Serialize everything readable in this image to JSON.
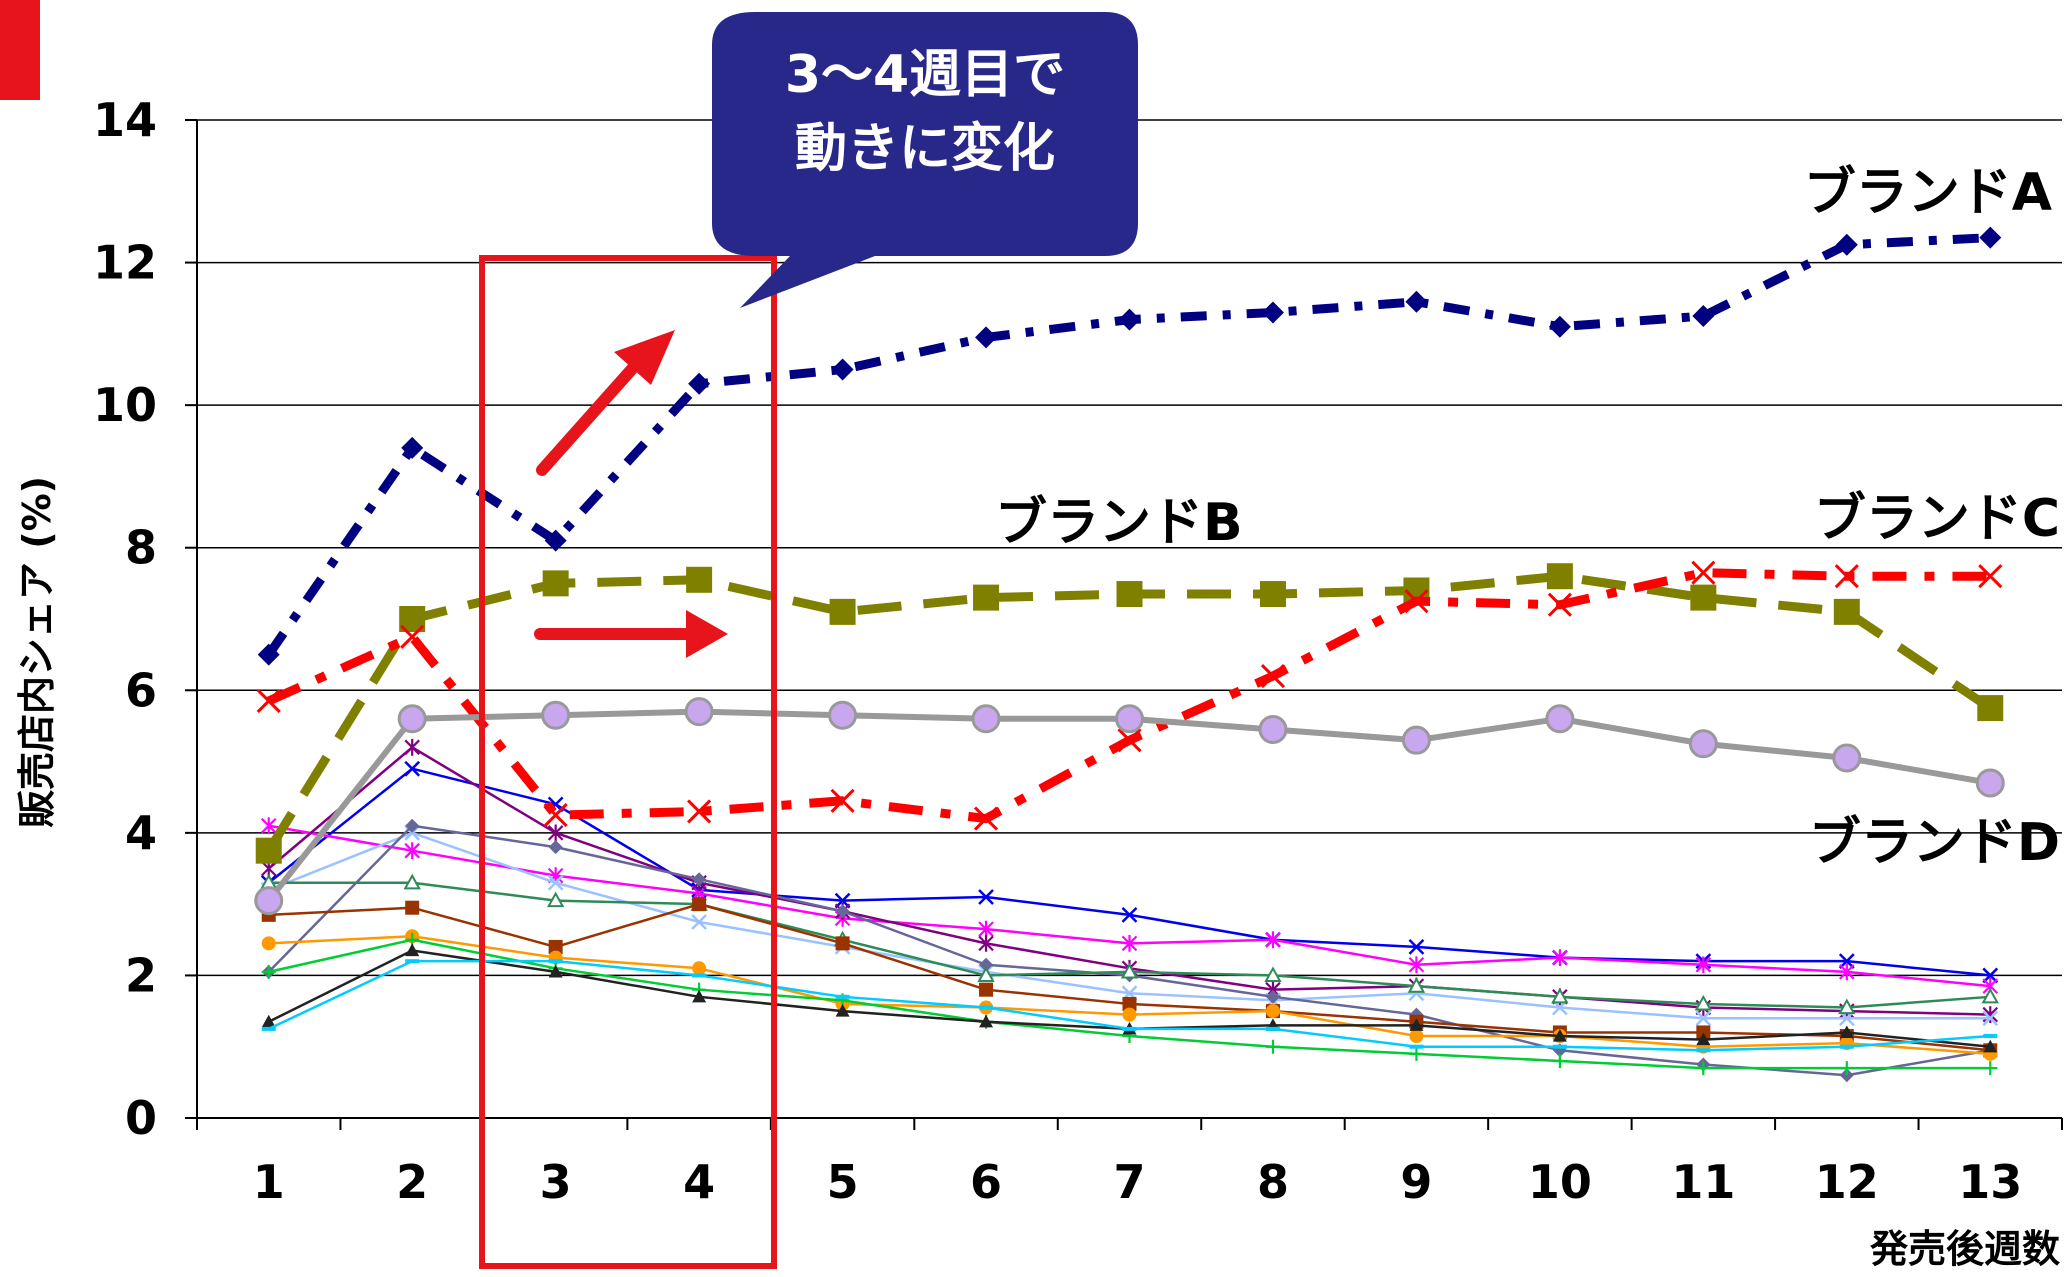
{
  "colors": {
    "brand_a": "#000080",
    "brand_b": "#808000",
    "brand_c": "#ff0000",
    "brand_d": "#999999",
    "callout_bg": "#28288a",
    "highlight": "#e8141b"
  },
  "callout": {
    "line1": "3～4週目で",
    "line2": "動きに変化"
  },
  "chart_data": {
    "type": "line",
    "xlabel": "発売後週数",
    "ylabel": "販売店内シェア (%)",
    "ylim": [
      0,
      14
    ],
    "yticks": [
      "0",
      "2",
      "4",
      "6",
      "8",
      "10",
      "12",
      "14"
    ],
    "categories": [
      "1",
      "2",
      "3",
      "4",
      "5",
      "6",
      "7",
      "8",
      "9",
      "10",
      "11",
      "12",
      "13"
    ],
    "grid": true,
    "series": [
      {
        "name": "ブランドA",
        "color": "#000080",
        "style": "dashed-thick",
        "marker": "diamond",
        "values": [
          6.5,
          9.4,
          8.1,
          10.3,
          10.5,
          10.95,
          11.2,
          11.3,
          11.45,
          11.1,
          11.25,
          12.25,
          12.35
        ]
      },
      {
        "name": "ブランドB",
        "color": "#808000",
        "style": "dashed-thick",
        "marker": "square",
        "values": [
          3.75,
          7.0,
          7.5,
          7.55,
          7.1,
          7.3,
          7.35,
          7.35,
          7.4,
          7.6,
          7.3,
          7.1,
          5.75
        ]
      },
      {
        "name": "ブランドC",
        "color": "#ff0000",
        "style": "dashed-thick",
        "marker": "x",
        "values": [
          5.85,
          6.75,
          4.25,
          4.3,
          4.45,
          4.2,
          5.3,
          6.2,
          7.25,
          7.2,
          7.65,
          7.6,
          7.6
        ]
      },
      {
        "name": "ブランドD",
        "color": "#999999",
        "style": "solid-thick",
        "marker": "circle",
        "values": [
          3.05,
          5.6,
          5.65,
          5.7,
          5.65,
          5.6,
          5.6,
          5.45,
          5.3,
          5.6,
          5.25,
          5.05,
          4.7
        ]
      },
      {
        "color": "#0000ee",
        "marker": "x",
        "values": [
          3.3,
          4.9,
          4.4,
          3.2,
          3.05,
          3.1,
          2.85,
          2.5,
          2.4,
          2.25,
          2.2,
          2.2,
          2.0
        ]
      },
      {
        "color": "#ff00ff",
        "marker": "star",
        "values": [
          4.1,
          3.75,
          3.4,
          3.15,
          2.8,
          2.65,
          2.45,
          2.5,
          2.15,
          2.25,
          2.15,
          2.05,
          1.85
        ]
      },
      {
        "color": "#800080",
        "marker": "star",
        "values": [
          3.5,
          5.2,
          4.0,
          3.3,
          2.9,
          2.45,
          2.1,
          1.8,
          1.85,
          1.7,
          1.55,
          1.5,
          1.45
        ]
      },
      {
        "color": "#9bc2ff",
        "marker": "x",
        "values": [
          3.2,
          4.0,
          3.3,
          2.75,
          2.4,
          2.05,
          1.75,
          1.65,
          1.75,
          1.55,
          1.4,
          1.4,
          1.4
        ]
      },
      {
        "color": "#666699",
        "marker": "diamond",
        "values": [
          2.05,
          4.1,
          3.8,
          3.35,
          2.9,
          2.15,
          2.0,
          1.7,
          1.45,
          0.95,
          0.75,
          0.6,
          0.95
        ]
      },
      {
        "color": "#2e8b57",
        "marker": "triangle-open",
        "values": [
          3.3,
          3.3,
          3.05,
          3.0,
          2.5,
          2.0,
          2.05,
          2.0,
          1.85,
          1.7,
          1.6,
          1.55,
          1.7
        ]
      },
      {
        "color": "#993300",
        "marker": "square",
        "values": [
          2.85,
          2.95,
          2.4,
          3.0,
          2.45,
          1.8,
          1.6,
          1.5,
          1.35,
          1.2,
          1.2,
          1.15,
          0.95
        ]
      },
      {
        "color": "#ff9900",
        "marker": "circle",
        "values": [
          2.45,
          2.55,
          2.25,
          2.1,
          1.6,
          1.55,
          1.45,
          1.5,
          1.15,
          1.15,
          1.0,
          1.05,
          0.9
        ]
      },
      {
        "color": "#00cc33",
        "marker": "plus",
        "values": [
          2.05,
          2.5,
          2.1,
          1.8,
          1.65,
          1.35,
          1.15,
          1.0,
          0.9,
          0.8,
          0.7,
          0.7,
          0.7
        ]
      },
      {
        "color": "#222222",
        "marker": "triangle",
        "values": [
          1.35,
          2.35,
          2.05,
          1.7,
          1.5,
          1.35,
          1.25,
          1.3,
          1.3,
          1.15,
          1.1,
          1.2,
          1.0
        ]
      },
      {
        "color": "#00ccff",
        "marker": "dash",
        "values": [
          1.25,
          2.2,
          2.2,
          2.0,
          1.7,
          1.55,
          1.25,
          1.25,
          1.0,
          1.0,
          0.95,
          1.0,
          1.15
        ]
      }
    ]
  }
}
